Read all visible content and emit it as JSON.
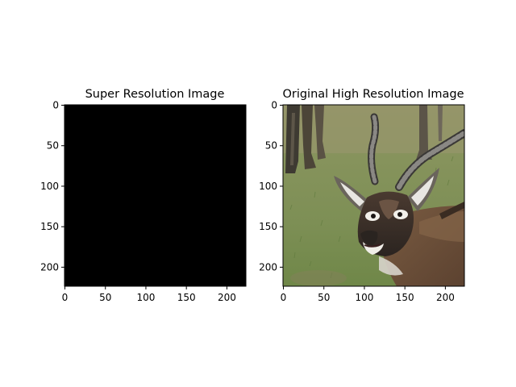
{
  "figure": {
    "panels": [
      {
        "title": "Super Resolution Image",
        "content": "black",
        "x_ticks": [
          "0",
          "50",
          "100",
          "150",
          "200"
        ],
        "y_ticks": [
          "0",
          "50",
          "100",
          "150",
          "200"
        ],
        "xlim": [
          0,
          224
        ],
        "ylim": [
          224,
          0
        ]
      },
      {
        "title": "Original High Resolution Image",
        "content": "photo-blackbuck-antelope",
        "x_ticks": [
          "0",
          "50",
          "100",
          "150",
          "200"
        ],
        "y_ticks": [
          "0",
          "50",
          "100",
          "150",
          "200"
        ],
        "xlim": [
          0,
          224
        ],
        "ylim": [
          224,
          0
        ]
      }
    ]
  },
  "colors": {
    "background": "#ffffff",
    "axes": "#000000",
    "super_resolution_fill": "#000000"
  }
}
